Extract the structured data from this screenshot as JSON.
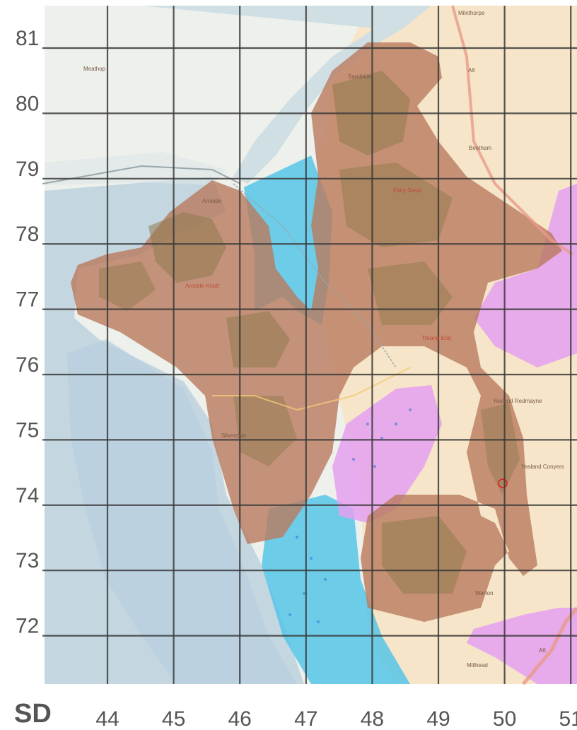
{
  "map": {
    "grid_prefix": "SD",
    "eastings": [
      "44",
      "45",
      "46",
      "47",
      "48",
      "49",
      "50",
      "51"
    ],
    "northings": [
      "81",
      "80",
      "79",
      "78",
      "77",
      "76",
      "75",
      "74",
      "73",
      "72"
    ],
    "place_labels": [
      {
        "id": "milnthorpe",
        "text": "Milnthorpe"
      },
      {
        "id": "meathop",
        "text": "Meathop"
      },
      {
        "id": "sandside",
        "text": "Sandside"
      },
      {
        "id": "beetham",
        "text": "Beetham"
      },
      {
        "id": "fairy-steps",
        "text": "Fairy Steps"
      },
      {
        "id": "arnside",
        "text": "Arnside"
      },
      {
        "id": "arnside-knott",
        "text": "Arnside Knott"
      },
      {
        "id": "thrang-end",
        "text": "Thrang End"
      },
      {
        "id": "yealand-redmayne",
        "text": "Yealand Redmayne"
      },
      {
        "id": "silverdale",
        "text": "Silverdale"
      },
      {
        "id": "yealand-conyers",
        "text": "Yealand Conyers"
      },
      {
        "id": "warton",
        "text": "Warton"
      },
      {
        "id": "millhead",
        "text": "Millhead"
      }
    ],
    "road_labels": [
      {
        "id": "a6-north",
        "text": "A6"
      },
      {
        "id": "a6-south",
        "text": "A6"
      }
    ],
    "colors": {
      "sea": "#c4d6e0",
      "estuary": "#b5d3e3",
      "land": "#eef0ec",
      "farmland": "#f6e5c8",
      "aonb": "#b97a5e",
      "woodland": "#8f7a4e",
      "wetland": "#56c6e8",
      "sssi": "#e4a0f0",
      "grid": "#3a3a3a",
      "marker": "#e02020"
    }
  }
}
